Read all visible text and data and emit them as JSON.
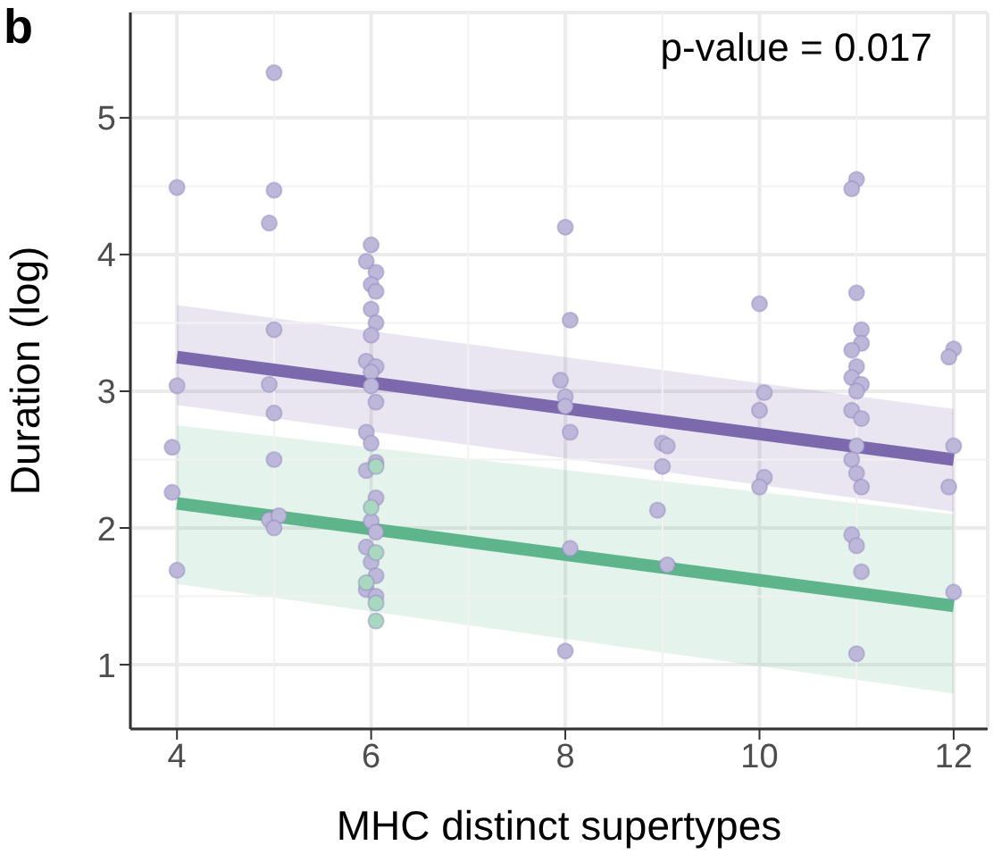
{
  "chart_data": {
    "type": "scatter",
    "title": "b",
    "xlabel": "MHC distinct supertypes",
    "ylabel": "Duration (log)",
    "annotations": [
      "p-value = 0.017"
    ],
    "xlim": [
      3.52,
      12.35
    ],
    "xticks": [
      4,
      6,
      8,
      10,
      12
    ],
    "ylim": [
      0.53,
      5.77
    ],
    "yticks": [
      1,
      2,
      3,
      4,
      5
    ],
    "grid": true,
    "series": [
      {
        "marker": "circle",
        "color": "#bdb7da",
        "x": [
          3.95,
          4,
          4,
          3.95,
          4,
          5,
          5,
          4.95,
          5,
          4.95,
          5,
          5,
          4.95,
          5.05,
          5,
          6,
          5.95,
          6.05,
          6,
          6.05,
          6,
          6.05,
          6,
          5.95,
          6.05,
          6,
          6,
          6.05,
          5.95,
          6,
          6.05,
          5.95,
          6.05,
          6,
          6.05,
          5.95,
          6,
          6.05,
          5.95,
          6.05,
          8,
          8.05,
          7.95,
          8,
          8,
          8.05,
          8.05,
          8,
          9,
          9.05,
          9,
          8.95,
          9.05,
          10,
          10.05,
          10,
          10.05,
          10,
          11,
          10.95,
          11,
          11.05,
          11.05,
          10.95,
          11,
          10.95,
          11.05,
          11,
          10.95,
          11.05,
          11,
          10.95,
          11,
          11.05,
          10.95,
          11,
          11.05,
          11,
          12,
          11.95,
          12,
          11.95,
          12
        ],
        "values": [
          2.59,
          4.49,
          3.04,
          2.26,
          1.69,
          5.33,
          4.47,
          4.23,
          3.45,
          3.05,
          2.84,
          2.5,
          2.06,
          2.09,
          2.0,
          4.07,
          3.95,
          3.87,
          3.78,
          3.73,
          3.6,
          3.5,
          3.41,
          3.22,
          3.18,
          3.14,
          3.04,
          2.92,
          2.7,
          2.62,
          2.48,
          2.42,
          2.22,
          2.05,
          1.97,
          1.86,
          1.75,
          1.65,
          1.55,
          1.5,
          4.2,
          3.52,
          3.08,
          2.96,
          2.89,
          2.7,
          1.85,
          1.1,
          2.62,
          2.6,
          2.45,
          2.13,
          1.73,
          3.64,
          2.99,
          2.86,
          2.37,
          2.3,
          4.55,
          4.48,
          3.72,
          3.45,
          3.35,
          3.3,
          3.18,
          3.1,
          3.05,
          3.0,
          2.86,
          2.8,
          2.6,
          2.5,
          2.4,
          2.3,
          1.95,
          1.87,
          1.68,
          1.08,
          3.31,
          3.25,
          2.6,
          2.3,
          1.53
        ]
      },
      {
        "marker": "circle",
        "color": "#a9d8c0",
        "x": [
          6.05,
          6,
          6.05,
          5.95,
          6.05,
          6.05
        ],
        "values": [
          2.45,
          2.15,
          1.82,
          1.6,
          1.45,
          1.32
        ]
      },
      {
        "type": "line",
        "color": "#7b68ad",
        "x": [
          4,
          12
        ],
        "values": [
          3.25,
          2.5
        ],
        "lower": [
          2.9,
          2.12
        ],
        "upper": [
          3.63,
          2.87
        ]
      },
      {
        "type": "line",
        "color": "#5fb58b",
        "x": [
          4,
          12
        ],
        "values": [
          2.18,
          1.43
        ],
        "lower": [
          1.59,
          0.79
        ],
        "upper": [
          2.75,
          2.1
        ]
      }
    ]
  }
}
